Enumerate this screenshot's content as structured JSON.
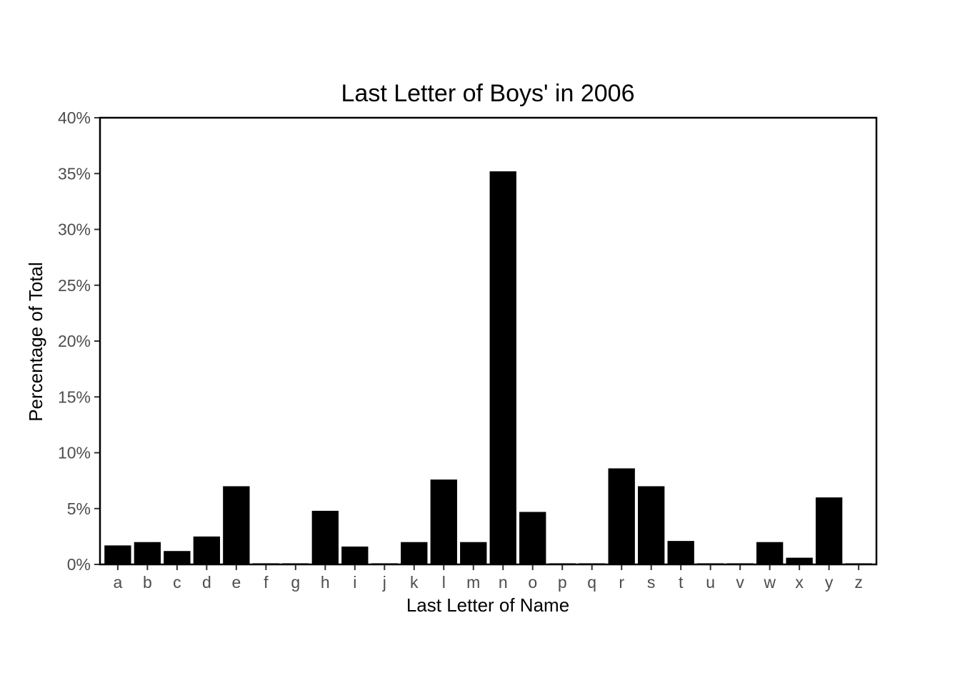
{
  "chart_data": {
    "type": "bar",
    "title": "Last Letter of Boys' in 2006",
    "xlabel": "Last Letter of Name",
    "ylabel": "Percentage of Total",
    "categories": [
      "a",
      "b",
      "c",
      "d",
      "e",
      "f",
      "g",
      "h",
      "i",
      "j",
      "k",
      "l",
      "m",
      "n",
      "o",
      "p",
      "q",
      "r",
      "s",
      "t",
      "u",
      "v",
      "w",
      "x",
      "y",
      "z"
    ],
    "values": [
      1.7,
      2.0,
      1.2,
      2.5,
      7.0,
      0.1,
      0.1,
      4.8,
      1.6,
      0.1,
      2.0,
      7.6,
      2.0,
      35.2,
      4.7,
      0.1,
      0.1,
      8.6,
      7.0,
      2.1,
      0.1,
      0.1,
      2.0,
      0.6,
      6.0,
      0.1
    ],
    "ylim": [
      0,
      40
    ],
    "yticks": [
      "0%",
      "5%",
      "10%",
      "15%",
      "20%",
      "25%",
      "30%",
      "35%",
      "40%"
    ],
    "ytick_values": [
      0,
      5,
      10,
      15,
      20,
      25,
      30,
      35,
      40
    ],
    "grid": false,
    "bar_color": "#000000"
  }
}
